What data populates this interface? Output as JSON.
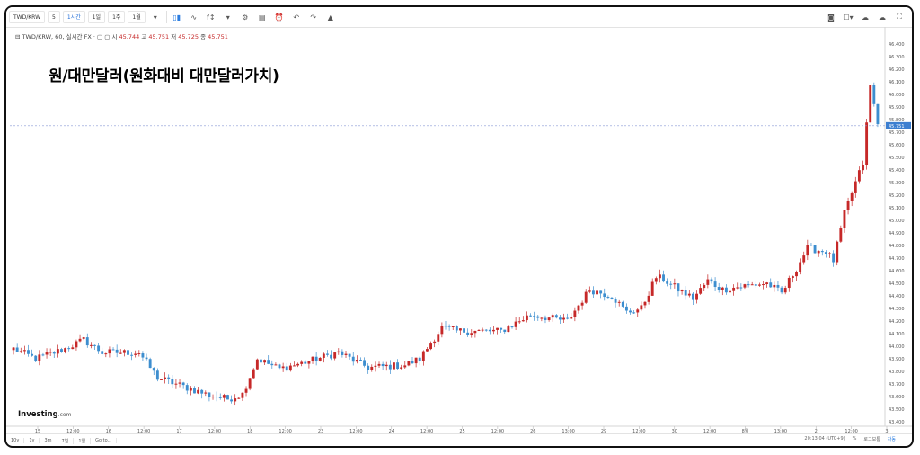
{
  "toolbar": {
    "symbol": "TWD/KRW",
    "intervals": [
      "5",
      "1시간",
      "1일",
      "1주",
      "1월"
    ],
    "active_interval": "1시간",
    "icons": [
      "candles-icon",
      "indicators-icon",
      "compare-icon",
      "chevron-down-icon",
      "gear-icon",
      "templates-icon",
      "alert-icon",
      "undo-icon",
      "redo-icon",
      "draw-icon"
    ],
    "right_icons": [
      "camera-icon",
      "layout-icon",
      "cloud-save-icon",
      "cloud-load-icon",
      "fullscreen-icon"
    ]
  },
  "legend": {
    "symbol_line": "TWD/KRW, 60, 실시간 FX",
    "open_label": "시",
    "open": "45.744",
    "high_label": "고",
    "high": "45.751",
    "low_label": "저",
    "low": "45.725",
    "close_label": "종",
    "close": "45.751"
  },
  "title": "원/대만달러(원화대비 대만달러가치)",
  "watermark": {
    "brand": "Investing",
    "suffix": ".com"
  },
  "bottombar": {
    "ranges": [
      "10y",
      "1y",
      "3m",
      "7일",
      "1일",
      "Go to..."
    ],
    "timestamp": "20:13:04 (UTC+9)",
    "pct": "%",
    "log": "로그보통",
    "auto": "자동"
  },
  "colors": {
    "up": "#c62828",
    "down": "#3d8ecf",
    "price_line": "#8a9ad6",
    "price_badge": "#3d7fd0"
  },
  "chart_data": {
    "type": "candlestick",
    "title": "원/대만달러(원화대비 대만달러가치)",
    "ylim": [
      43.4,
      46.45
    ],
    "y_ticks": [
      "46.400",
      "46.300",
      "46.200",
      "46.100",
      "46.000",
      "45.900",
      "45.800",
      "45.700",
      "45.600",
      "45.500",
      "45.400",
      "45.300",
      "45.200",
      "45.100",
      "45.000",
      "44.900",
      "44.800",
      "44.700",
      "44.600",
      "44.500",
      "44.400",
      "44.300",
      "44.200",
      "44.100",
      "44.000",
      "43.900",
      "43.800",
      "43.700",
      "43.600",
      "43.500",
      "43.400"
    ],
    "x_ticks": [
      "15",
      "12:00",
      "16",
      "12:00",
      "17",
      "12:00",
      "18",
      "12:00",
      "23",
      "12:00",
      "24",
      "12:00",
      "25",
      "12:00",
      "26",
      "13:00",
      "29",
      "12:00",
      "30",
      "12:00",
      "8월",
      "13:00",
      "2",
      "12:00",
      "3"
    ],
    "current_price": "45.751",
    "anchors": [
      [
        0,
        43.98
      ],
      [
        6,
        43.9
      ],
      [
        14,
        43.98
      ],
      [
        19,
        44.05
      ],
      [
        24,
        43.95
      ],
      [
        34,
        43.95
      ],
      [
        39,
        43.75
      ],
      [
        52,
        43.62
      ],
      [
        58,
        43.58
      ],
      [
        62,
        43.62
      ],
      [
        66,
        43.9
      ],
      [
        72,
        43.82
      ],
      [
        80,
        43.88
      ],
      [
        88,
        43.95
      ],
      [
        96,
        43.83
      ],
      [
        106,
        43.85
      ],
      [
        110,
        43.9
      ],
      [
        116,
        44.15
      ],
      [
        120,
        44.12
      ],
      [
        132,
        44.12
      ],
      [
        140,
        44.25
      ],
      [
        150,
        44.2
      ],
      [
        156,
        44.45
      ],
      [
        162,
        44.4
      ],
      [
        166,
        44.27
      ],
      [
        170,
        44.3
      ],
      [
        174,
        44.55
      ],
      [
        176,
        44.53
      ],
      [
        180,
        44.45
      ],
      [
        184,
        44.38
      ],
      [
        188,
        44.52
      ],
      [
        192,
        44.45
      ],
      [
        198,
        44.48
      ],
      [
        204,
        44.5
      ],
      [
        208,
        44.42
      ],
      [
        212,
        44.62
      ],
      [
        215,
        44.78
      ],
      [
        220,
        44.75
      ],
      [
        222,
        44.68
      ],
      [
        225,
        45.05
      ],
      [
        228,
        45.3
      ],
      [
        230,
        45.45
      ],
      [
        232,
        46.07
      ],
      [
        234,
        45.76
      ]
    ]
  }
}
